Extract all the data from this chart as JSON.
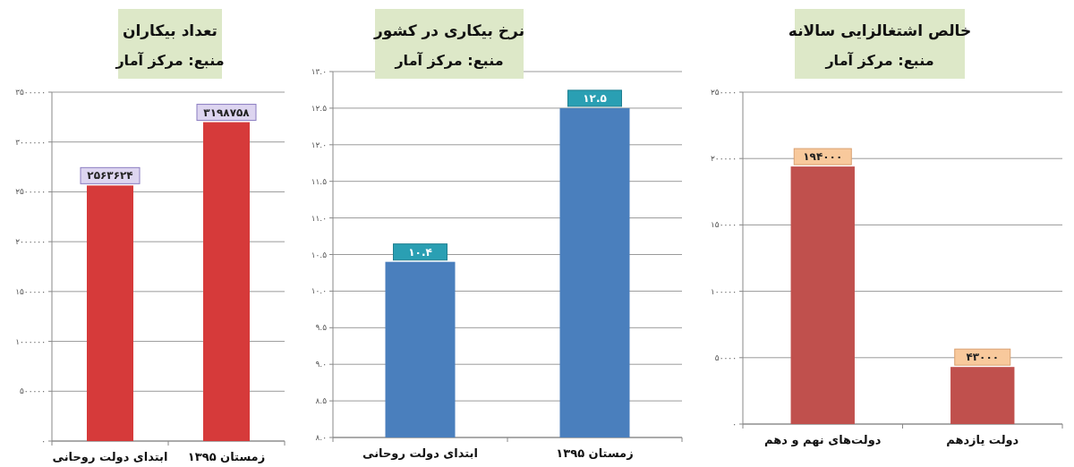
{
  "chart_data": [
    {
      "type": "bar",
      "title": "تعداد بیکاران",
      "subtitle": "منبع: مرکز آمار",
      "categories": [
        "ابتدای دولت روحانی",
        "زمستان ۱۳۹۵"
      ],
      "values": [
        2563624,
        3198758
      ],
      "color": "#d63a3a",
      "value_labels": [
        "۲۵۶۳۶۲۴",
        "۳۱۹۸۷۵۸"
      ],
      "ylim": [
        0,
        3500000
      ],
      "yticks": [
        {
          "value": 0,
          "label": "۰"
        },
        {
          "value": 500000,
          "label": "۵۰۰۰۰۰"
        },
        {
          "value": 1000000,
          "label": "۱۰۰۰۰۰۰"
        },
        {
          "value": 1500000,
          "label": "۱۵۰۰۰۰۰"
        },
        {
          "value": 2000000,
          "label": "۲۰۰۰۰۰۰"
        },
        {
          "value": 2500000,
          "label": "۲۵۰۰۰۰۰"
        },
        {
          "value": 3000000,
          "label": "۳۰۰۰۰۰۰"
        },
        {
          "value": 3500000,
          "label": "۳۵۰۰۰۰۰"
        }
      ],
      "grid": "y"
    },
    {
      "type": "bar",
      "title": "نرخ بیکاری در کشور",
      "subtitle": "منبع: مرکز آمار",
      "categories": [
        "ابتدای دولت روحانی",
        "زمستان ۱۳۹۵"
      ],
      "values": [
        10.4,
        12.5
      ],
      "color": "#4a7fbd",
      "value_labels": [
        "۱۰.۴",
        "۱۲.۵"
      ],
      "ylim": [
        8,
        13
      ],
      "yticks": [
        {
          "value": 8,
          "label": "۸.۰"
        },
        {
          "value": 8.5,
          "label": "۸.۵"
        },
        {
          "value": 9,
          "label": "۹.۰"
        },
        {
          "value": 9.5,
          "label": "۹.۵"
        },
        {
          "value": 10,
          "label": "۱۰.۰"
        },
        {
          "value": 10.5,
          "label": "۱۰.۵"
        },
        {
          "value": 11,
          "label": "۱۱.۰"
        },
        {
          "value": 11.5,
          "label": "۱۱.۵"
        },
        {
          "value": 12,
          "label": "۱۲.۰"
        },
        {
          "value": 12.5,
          "label": "۱۲.۵"
        },
        {
          "value": 13,
          "label": "۱۳.۰"
        }
      ],
      "grid": "y"
    },
    {
      "type": "bar",
      "title": "خالص اشتغالزایی سالانه",
      "subtitle": "منبع: مرکز آمار",
      "categories": [
        "دولت‌های نهم و دهم",
        "دولت یازدهم"
      ],
      "values": [
        194000,
        43000
      ],
      "color": "#c0504d",
      "value_labels": [
        "۱۹۴۰۰۰",
        "۴۳۰۰۰"
      ],
      "ylim": [
        0,
        250000
      ],
      "yticks": [
        {
          "value": 0,
          "label": "۰"
        },
        {
          "value": 50000,
          "label": "۵۰۰۰۰"
        },
        {
          "value": 100000,
          "label": "۱۰۰۰۰۰"
        },
        {
          "value": 150000,
          "label": "۱۵۰۰۰۰"
        },
        {
          "value": 200000,
          "label": "۲۰۰۰۰۰"
        },
        {
          "value": 250000,
          "label": "۲۵۰۰۰۰"
        }
      ],
      "grid": "y"
    }
  ]
}
